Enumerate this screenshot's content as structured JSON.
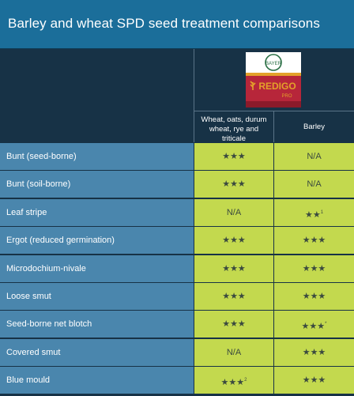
{
  "title": "Barley and wheat SPD seed treatment comparisons",
  "product": {
    "name": "REDIGO",
    "suffix": "PRO",
    "brand": "BAYER",
    "colors": {
      "red": "#b7263a",
      "gold": "#e3a12a"
    }
  },
  "columns": [
    {
      "label": "Wheat, oats, durum wheat, rye and triticale"
    },
    {
      "label": "Barley"
    }
  ],
  "rows": [
    {
      "label": "Bunt (seed-borne)",
      "c1": "★★★",
      "c1_sup": "",
      "c2": "N/A",
      "c2_sup": ""
    },
    {
      "label": "Bunt (soil-borne)",
      "c1": "★★★",
      "c1_sup": "",
      "c2": "N/A",
      "c2_sup": ""
    },
    {
      "label": "Leaf stripe",
      "c1": "N/A",
      "c1_sup": "",
      "c2": "★★",
      "c2_sup": "1"
    },
    {
      "label": "Ergot (reduced germination)",
      "c1": "★★★",
      "c1_sup": "",
      "c2": "★★★",
      "c2_sup": ""
    },
    {
      "label": "Microdochium-nivale",
      "c1": "★★★",
      "c1_sup": "",
      "c2": "★★★",
      "c2_sup": ""
    },
    {
      "label": "Loose smut",
      "c1": "★★★",
      "c1_sup": "",
      "c2": "★★★",
      "c2_sup": ""
    },
    {
      "label": "Seed-borne net blotch",
      "c1": "★★★",
      "c1_sup": "",
      "c2": "★★★",
      "c2_sup": "*"
    },
    {
      "label": "Covered smut",
      "c1": "N/A",
      "c1_sup": "",
      "c2": "★★★",
      "c2_sup": ""
    },
    {
      "label": "Blue mould",
      "c1": "★★★",
      "c1_sup": "2",
      "c2": "★★★",
      "c2_sup": ""
    }
  ]
}
